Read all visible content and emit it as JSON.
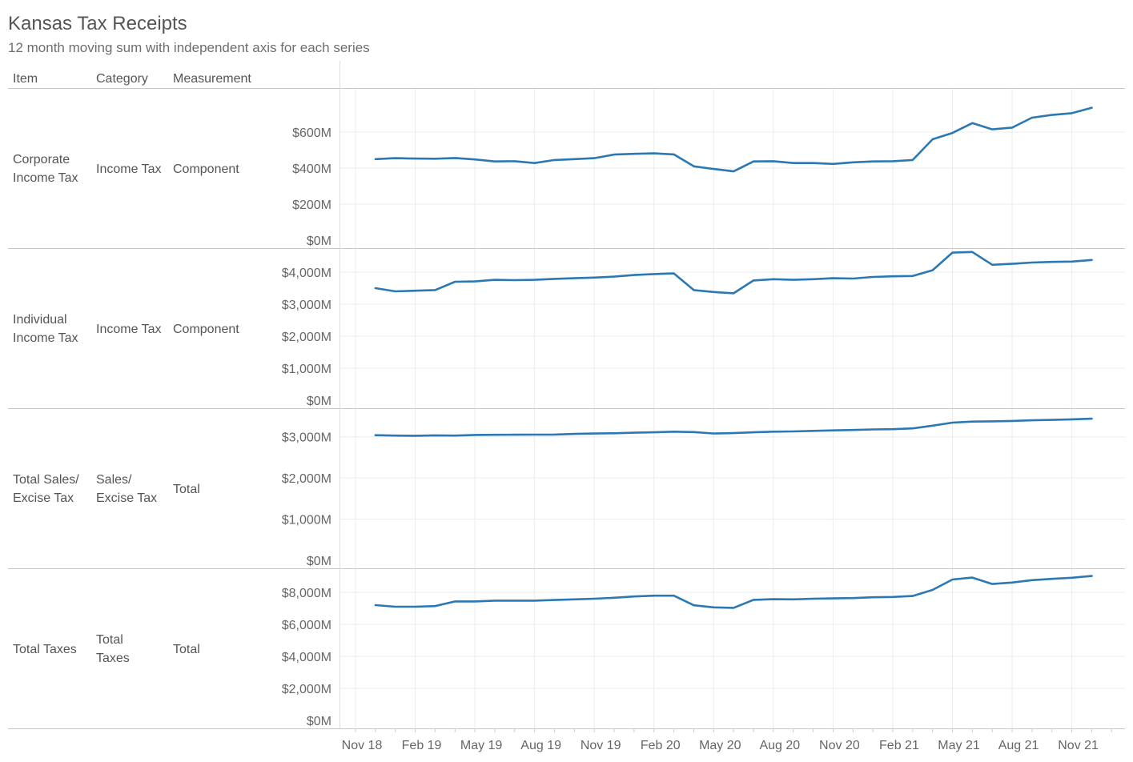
{
  "title": "Kansas Tax Receipts",
  "subtitle": "12 month moving sum with independent axis for each series",
  "headers": {
    "item": "Item",
    "category": "Category",
    "measurement": "Measurement"
  },
  "rows": [
    {
      "item_lines": [
        "Corporate",
        "Income Tax"
      ],
      "category_lines": [
        "Income Tax"
      ],
      "measurement_lines": [
        "Component"
      ]
    },
    {
      "item_lines": [
        "Individual",
        "Income Tax"
      ],
      "category_lines": [
        "Income Tax"
      ],
      "measurement_lines": [
        "Component"
      ]
    },
    {
      "item_lines": [
        "Total Sales/",
        "Excise Tax"
      ],
      "category_lines": [
        "Sales/",
        "Excise Tax"
      ],
      "measurement_lines": [
        "Total"
      ]
    },
    {
      "item_lines": [
        "Total Taxes"
      ],
      "category_lines": [
        "Total",
        "Taxes"
      ],
      "measurement_lines": [
        "Total"
      ]
    }
  ],
  "colors": {
    "line": "#2c78b3",
    "grid": "#ececec",
    "divider": "#c8c8c8",
    "text": "#555555"
  },
  "chart_data": {
    "type": "line",
    "x_axis": {
      "tick_labels": [
        "Nov 18",
        "Feb 19",
        "May 19",
        "Aug 19",
        "Nov 19",
        "Feb 20",
        "May 20",
        "Aug 20",
        "Nov 20",
        "Feb 21",
        "May 21",
        "Aug 21",
        "Nov 21"
      ],
      "tick_month_index": [
        0,
        3,
        6,
        9,
        12,
        15,
        18,
        21,
        24,
        27,
        30,
        33,
        36
      ],
      "minor_tick_step_months": 1
    },
    "x": [
      "Dec 18",
      "Jan 19",
      "Feb 19",
      "Mar 19",
      "Apr 19",
      "May 19",
      "Jun 19",
      "Jul 19",
      "Aug 19",
      "Sep 19",
      "Oct 19",
      "Nov 19",
      "Dec 19",
      "Jan 20",
      "Feb 20",
      "Mar 20",
      "Apr 20",
      "May 20",
      "Jun 20",
      "Jul 20",
      "Aug 20",
      "Sep 20",
      "Oct 20",
      "Nov 20",
      "Dec 20",
      "Jan 21",
      "Feb 21",
      "Mar 21",
      "Apr 21",
      "May 21",
      "Jun 21",
      "Jul 21",
      "Aug 21",
      "Sep 21",
      "Oct 21",
      "Nov 21",
      "Dec 21"
    ],
    "x_month_index": [
      1,
      2,
      3,
      4,
      5,
      6,
      7,
      8,
      9,
      10,
      11,
      12,
      13,
      14,
      15,
      16,
      17,
      18,
      19,
      20,
      21,
      22,
      23,
      24,
      25,
      26,
      27,
      28,
      29,
      30,
      31,
      32,
      33,
      34,
      35,
      36,
      37
    ],
    "series": [
      {
        "ylim": [
          0,
          800
        ],
        "y_ticks": [
          0,
          200,
          400,
          600
        ],
        "y_tick_labels": [
          "$0M",
          "$200M",
          "$400M",
          "$600M"
        ],
        "values": [
          450,
          455,
          453,
          452,
          456,
          448,
          437,
          438,
          428,
          445,
          450,
          455,
          475,
          479,
          482,
          476,
          410,
          395,
          382,
          437,
          438,
          428,
          428,
          423,
          432,
          437,
          438,
          445,
          560,
          595,
          650,
          615,
          625,
          680,
          695,
          705,
          735
        ]
      },
      {
        "ylim": [
          0,
          4500
        ],
        "y_ticks": [
          0,
          1000,
          2000,
          3000,
          4000
        ],
        "y_tick_labels": [
          "$0M",
          "$1,000M",
          "$2,000M",
          "$3,000M",
          "$4,000M"
        ],
        "values": [
          3500,
          3400,
          3420,
          3440,
          3700,
          3710,
          3760,
          3750,
          3760,
          3790,
          3810,
          3830,
          3860,
          3910,
          3940,
          3960,
          3440,
          3380,
          3340,
          3740,
          3780,
          3760,
          3780,
          3810,
          3800,
          3850,
          3870,
          3880,
          4060,
          4610,
          4630,
          4230,
          4260,
          4300,
          4320,
          4330,
          4380
        ]
      },
      {
        "ylim": [
          0,
          3500
        ],
        "y_ticks": [
          0,
          1000,
          2000,
          3000
        ],
        "y_tick_labels": [
          "$0M",
          "$1,000M",
          "$2,000M",
          "$3,000M"
        ],
        "values": [
          3040,
          3030,
          3025,
          3035,
          3030,
          3045,
          3048,
          3050,
          3052,
          3055,
          3070,
          3080,
          3085,
          3100,
          3110,
          3125,
          3115,
          3080,
          3090,
          3110,
          3125,
          3130,
          3145,
          3155,
          3165,
          3180,
          3185,
          3205,
          3270,
          3345,
          3370,
          3375,
          3385,
          3400,
          3410,
          3425,
          3440
        ]
      },
      {
        "ylim": [
          0,
          9000
        ],
        "y_ticks": [
          0,
          2000,
          4000,
          6000,
          8000
        ],
        "y_tick_labels": [
          "$0M",
          "$2,000M",
          "$4,000M",
          "$6,000M",
          "$8,000M"
        ],
        "values": [
          7200,
          7100,
          7100,
          7140,
          7430,
          7430,
          7480,
          7480,
          7480,
          7520,
          7560,
          7600,
          7660,
          7740,
          7790,
          7790,
          7190,
          7060,
          7030,
          7530,
          7570,
          7560,
          7600,
          7620,
          7640,
          7690,
          7710,
          7770,
          8150,
          8800,
          8920,
          8520,
          8610,
          8760,
          8840,
          8910,
          9020
        ]
      }
    ]
  }
}
